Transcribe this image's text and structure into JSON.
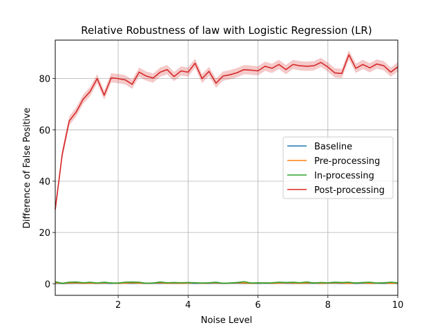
{
  "chart_data": {
    "type": "line",
    "title": "Relative Robustness of law with Logistic Regression (LR)",
    "xlabel": "Noise Level",
    "ylabel": "Difference of False Positive",
    "xlim": [
      0.2,
      10
    ],
    "ylim": [
      -4.5,
      95
    ],
    "xticks": [
      2,
      4,
      6,
      8,
      10
    ],
    "yticks": [
      0,
      20,
      40,
      60,
      80
    ],
    "grid": true,
    "legend_position": "center-right",
    "x": [
      0.2,
      0.4,
      0.6,
      0.8,
      1.0,
      1.2,
      1.4,
      1.6,
      1.8,
      2.0,
      2.2,
      2.4,
      2.6,
      2.8,
      3.0,
      3.2,
      3.4,
      3.6,
      3.8,
      4.0,
      4.2,
      4.4,
      4.6,
      4.8,
      5.0,
      5.2,
      5.4,
      5.6,
      5.8,
      6.0,
      6.2,
      6.4,
      6.6,
      6.8,
      7.0,
      7.2,
      7.4,
      7.6,
      7.8,
      8.0,
      8.2,
      8.4,
      8.6,
      8.8,
      9.0,
      9.2,
      9.4,
      9.6,
      9.8,
      10.0
    ],
    "series": [
      {
        "name": "Baseline",
        "color": "#1f77b4",
        "values": [
          0.3,
          0.1,
          0.2,
          0.3,
          0.2,
          0.3,
          0.2,
          0.3,
          0.2,
          0.3,
          0.3,
          0.2,
          0.3,
          0.2,
          0.3,
          0.2,
          0.3,
          0.2,
          0.3,
          0.3,
          0.2,
          0.3,
          0.2,
          0.3,
          0.2,
          0.3,
          0.3,
          0.2,
          0.3,
          0.2,
          0.3,
          0.2,
          0.3,
          0.3,
          0.2,
          0.3,
          0.2,
          0.3,
          0.2,
          0.3,
          0.3,
          0.2,
          0.3,
          0.2,
          0.3,
          0.2,
          0.3,
          0.2,
          0.3,
          0.2
        ]
      },
      {
        "name": "Pre-processing",
        "color": "#ff7f0e",
        "values": [
          0.4,
          0.2,
          0.3,
          0.4,
          0.2,
          0.3,
          0.2,
          0.4,
          0.3,
          0.2,
          0.3,
          0.4,
          0.3,
          0.2,
          0.3,
          0.4,
          0.2,
          0.3,
          0.2,
          0.3,
          0.4,
          0.2,
          0.3,
          0.4,
          0.2,
          0.3,
          0.4,
          0.3,
          0.2,
          0.3,
          0.4,
          0.2,
          0.3,
          0.4,
          0.3,
          0.2,
          0.3,
          0.4,
          0.2,
          0.3,
          0.4,
          0.3,
          0.2,
          0.3,
          0.4,
          0.2,
          0.3,
          0.4,
          0.2,
          0.3
        ]
      },
      {
        "name": "In-processing",
        "color": "#2ca02c",
        "values": [
          0.8,
          0.2,
          0.6,
          0.7,
          0.4,
          0.6,
          0.3,
          0.6,
          0.3,
          0.3,
          0.6,
          0.7,
          0.6,
          0.2,
          0.3,
          0.7,
          0.4,
          0.5,
          0.4,
          0.5,
          0.4,
          0.3,
          0.4,
          0.6,
          0.2,
          0.3,
          0.5,
          0.8,
          0.3,
          0.4,
          0.3,
          0.4,
          0.6,
          0.5,
          0.6,
          0.4,
          0.7,
          0.3,
          0.5,
          0.4,
          0.6,
          0.5,
          0.6,
          0.3,
          0.5,
          0.6,
          0.3,
          0.4,
          0.6,
          0.4
        ]
      },
      {
        "name": "Post-processing",
        "color": "#d62728",
        "values": [
          29.0,
          50.5,
          63.5,
          67.0,
          72.0,
          75.0,
          80.0,
          73.5,
          80.3,
          80.0,
          79.5,
          77.8,
          82.5,
          81.0,
          80.2,
          82.5,
          83.5,
          80.8,
          83.0,
          82.5,
          86.0,
          80.0,
          82.8,
          78.2,
          81.0,
          81.5,
          82.3,
          83.5,
          83.3,
          83.0,
          84.8,
          84.0,
          85.5,
          83.5,
          85.5,
          85.0,
          84.8,
          85.0,
          86.3,
          84.5,
          82.2,
          82.0,
          89.3,
          84.0,
          85.5,
          84.2,
          85.7,
          85.0,
          82.5,
          84.6
        ],
        "band": 1.8
      }
    ]
  }
}
